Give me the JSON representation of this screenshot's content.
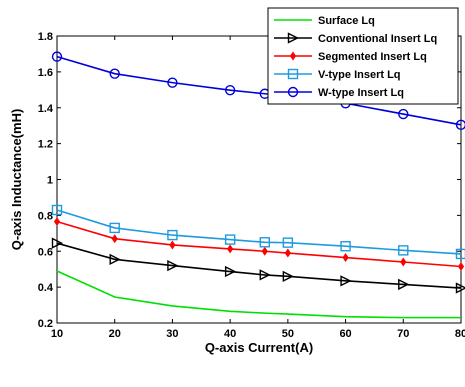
{
  "chart_data": {
    "type": "line",
    "title": "",
    "xlabel": "Q-axis Current(A)",
    "ylabel": "Q-axis Inductance(mH)",
    "xlim": [
      10,
      80
    ],
    "ylim": [
      0.2,
      1.8
    ],
    "xticks": [
      10,
      20,
      30,
      40,
      50,
      60,
      70,
      80
    ],
    "yticks": [
      0.2,
      0.4,
      0.6,
      0.8,
      1.0,
      1.2,
      1.4,
      1.6,
      1.8
    ],
    "xtick_labels": [
      "10",
      "20",
      "30",
      "40",
      "50",
      "60",
      "70",
      "80"
    ],
    "ytick_labels": [
      "0.2",
      "0.4",
      "0.6",
      "0.8",
      "1",
      "1.2",
      "1.4",
      "1.6",
      "1.8"
    ],
    "grid": false,
    "legend_position": "top-right",
    "series": [
      {
        "name": "Surface Lq",
        "color": "#00e000",
        "marker": "none",
        "x": [
          10,
          20,
          30,
          40,
          46,
          50,
          60,
          70,
          80
        ],
        "values": [
          0.49,
          0.345,
          0.295,
          0.265,
          0.255,
          0.25,
          0.235,
          0.23,
          0.23
        ]
      },
      {
        "name": "Conventional Insert Lq",
        "color": "#000000",
        "marker": "triangle-right",
        "x": [
          10,
          20,
          30,
          40,
          46,
          50,
          60,
          70,
          80
        ],
        "values": [
          0.645,
          0.555,
          0.52,
          0.487,
          0.468,
          0.46,
          0.435,
          0.415,
          0.395
        ]
      },
      {
        "name": "Segmented Insert Lq",
        "color": "#ff0000",
        "marker": "diamond",
        "x": [
          10,
          20,
          30,
          40,
          46,
          50,
          60,
          70,
          80
        ],
        "values": [
          0.765,
          0.67,
          0.635,
          0.613,
          0.6,
          0.59,
          0.565,
          0.54,
          0.515
        ]
      },
      {
        "name": "V-type Insert Lq",
        "color": "#1e9be0",
        "marker": "square",
        "x": [
          10,
          20,
          30,
          40,
          46,
          50,
          60,
          70,
          80
        ],
        "values": [
          0.83,
          0.73,
          0.69,
          0.665,
          0.65,
          0.648,
          0.628,
          0.605,
          0.585
        ]
      },
      {
        "name": "W-type Insert Lq",
        "color": "#0000dd",
        "marker": "circle",
        "x": [
          10,
          20,
          30,
          40,
          46,
          50,
          60,
          70,
          80
        ],
        "values": [
          1.685,
          1.59,
          1.54,
          1.498,
          1.478,
          1.465,
          1.425,
          1.365,
          1.305
        ]
      }
    ]
  }
}
